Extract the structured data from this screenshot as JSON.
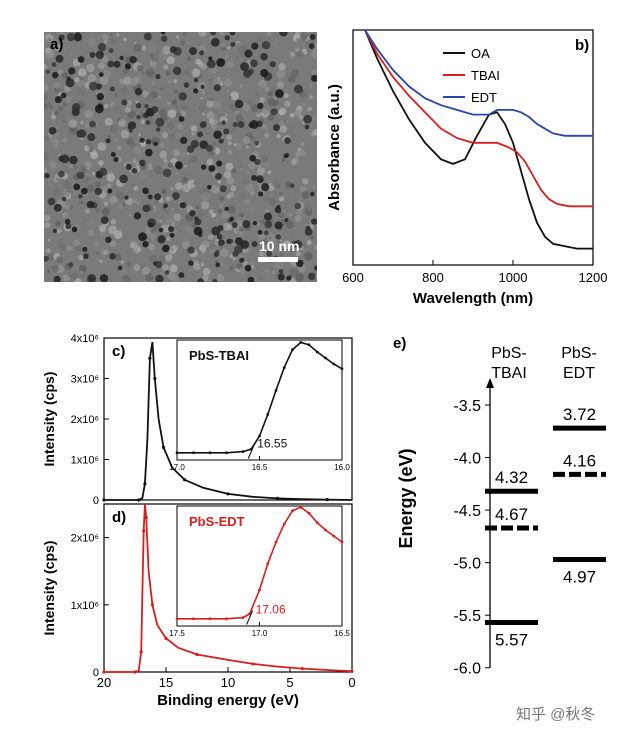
{
  "panel_a": {
    "label": "a)",
    "scale_bar_label": "10 nm"
  },
  "panel_e": {
    "label": "e)",
    "columns": [
      "PbS-\nTBAI",
      "PbS-\nEDT"
    ],
    "ylabel": "Energy (eV)"
  },
  "watermark": "知乎 @秋冬",
  "chart_data": [
    {
      "id": "b",
      "type": "line",
      "panel_label": "b)",
      "title": "",
      "xlabel": "Wavelength (nm)",
      "ylabel": "Absorbance (a.u.)",
      "xlim": [
        600,
        1200
      ],
      "ylim": [
        0,
        1
      ],
      "xticks": [
        600,
        800,
        1000,
        1200
      ],
      "legend_position": "top-center",
      "series": [
        {
          "name": "OA",
          "color": "#111111",
          "x": [
            630,
            660,
            700,
            740,
            780,
            820,
            850,
            880,
            910,
            940,
            960,
            980,
            1000,
            1020,
            1040,
            1060,
            1080,
            1100,
            1130,
            1160,
            1200
          ],
          "y": [
            1.0,
            0.88,
            0.74,
            0.62,
            0.52,
            0.45,
            0.43,
            0.45,
            0.55,
            0.64,
            0.65,
            0.6,
            0.52,
            0.4,
            0.28,
            0.18,
            0.12,
            0.09,
            0.08,
            0.07,
            0.07
          ]
        },
        {
          "name": "TBAI",
          "color": "#d42020",
          "x": [
            630,
            660,
            700,
            740,
            780,
            820,
            860,
            900,
            930,
            960,
            990,
            1010,
            1030,
            1050,
            1070,
            1090,
            1110,
            1140,
            1170,
            1200
          ],
          "y": [
            1.0,
            0.9,
            0.8,
            0.72,
            0.65,
            0.58,
            0.54,
            0.52,
            0.52,
            0.52,
            0.5,
            0.48,
            0.44,
            0.38,
            0.32,
            0.28,
            0.26,
            0.25,
            0.25,
            0.25
          ]
        },
        {
          "name": "EDT",
          "color": "#2a45a8",
          "x": [
            630,
            660,
            700,
            740,
            780,
            820,
            860,
            900,
            940,
            960,
            980,
            1000,
            1020,
            1040,
            1060,
            1080,
            1100,
            1130,
            1160,
            1200
          ],
          "y": [
            1.0,
            0.92,
            0.83,
            0.76,
            0.71,
            0.68,
            0.66,
            0.64,
            0.64,
            0.66,
            0.66,
            0.66,
            0.65,
            0.63,
            0.6,
            0.58,
            0.56,
            0.55,
            0.55,
            0.55
          ]
        }
      ]
    },
    {
      "id": "c",
      "type": "line",
      "panel_label": "c)",
      "xlabel": "",
      "ylabel": "Intensity (cps)",
      "xlim": [
        20,
        0
      ],
      "ylim": [
        0,
        4000000
      ],
      "yticks": [
        "0",
        "1x10⁶",
        "2x10⁶",
        "3x10⁶",
        "4x10⁶"
      ],
      "ytick_values": [
        0,
        1000000,
        2000000,
        3000000,
        4000000
      ],
      "series": [
        {
          "name": "PbS-TBAI",
          "color": "#111111",
          "x": [
            20,
            18,
            17.2,
            16.9,
            16.7,
            16.5,
            16.3,
            16.1,
            15.9,
            15.6,
            15.2,
            14.5,
            13.5,
            12,
            10,
            8,
            6,
            4,
            2,
            0
          ],
          "y": [
            0,
            0,
            0,
            50000,
            400000,
            1500000,
            3500000,
            3900000,
            3000000,
            2000000,
            1300000,
            800000,
            500000,
            300000,
            150000,
            80000,
            40000,
            20000,
            10000,
            0
          ]
        }
      ],
      "inset": {
        "label": "PbS-TBAI",
        "annotation": "16.55",
        "xlim": [
          17.0,
          16.0
        ],
        "xticks": [
          "17.0",
          "16.5",
          "16.0"
        ],
        "xtick_values": [
          17.0,
          16.5,
          16.0
        ],
        "x": [
          17.0,
          16.9,
          16.8,
          16.7,
          16.6,
          16.55,
          16.5,
          16.45,
          16.4,
          16.35,
          16.3,
          16.25,
          16.2,
          16.15,
          16.1,
          16.05,
          16.0
        ],
        "y": [
          0.06,
          0.06,
          0.06,
          0.06,
          0.07,
          0.09,
          0.2,
          0.38,
          0.58,
          0.77,
          0.92,
          0.98,
          0.96,
          0.9,
          0.85,
          0.8,
          0.76
        ]
      }
    },
    {
      "id": "d",
      "type": "line",
      "panel_label": "d)",
      "xlabel": "Binding energy (eV)",
      "ylabel": "Intensity (cps)",
      "xlim": [
        20,
        0
      ],
      "xticks": [
        20,
        15,
        10,
        5,
        0
      ],
      "ylim": [
        0,
        2500000
      ],
      "yticks": [
        "0",
        "1x10⁶",
        "2x10⁶"
      ],
      "ytick_values": [
        0,
        1000000,
        2000000
      ],
      "series": [
        {
          "name": "PbS-EDT",
          "color": "#d42020",
          "x": [
            20,
            18,
            17.5,
            17.2,
            17.0,
            16.9,
            16.8,
            16.7,
            16.6,
            16.4,
            16.1,
            15.7,
            15.0,
            14,
            12.5,
            10,
            8,
            6,
            4,
            2,
            0
          ],
          "y": [
            0,
            0,
            0,
            20000,
            300000,
            1200000,
            2100000,
            2500000,
            2300000,
            1500000,
            1000000,
            700000,
            500000,
            360000,
            260000,
            180000,
            120000,
            80000,
            50000,
            30000,
            10000
          ]
        }
      ],
      "inset": {
        "label": "PbS-EDT",
        "annotation": "17.06",
        "xlim": [
          17.5,
          16.5
        ],
        "xticks": [
          "17.5",
          "17.0",
          "16.5"
        ],
        "xtick_values": [
          17.5,
          17.0,
          16.5
        ],
        "x": [
          17.5,
          17.4,
          17.3,
          17.2,
          17.1,
          17.06,
          17.0,
          16.95,
          16.9,
          16.85,
          16.8,
          16.75,
          16.7,
          16.65,
          16.6,
          16.55,
          16.5
        ],
        "y": [
          0.06,
          0.06,
          0.06,
          0.06,
          0.07,
          0.1,
          0.3,
          0.52,
          0.7,
          0.85,
          0.96,
          0.99,
          0.94,
          0.86,
          0.8,
          0.75,
          0.7
        ]
      }
    },
    {
      "id": "e",
      "type": "other",
      "panel_label": "e)",
      "ylabel": "Energy (eV)",
      "ylim": [
        -6.0,
        -3.3
      ],
      "yticks": [
        "-3.5",
        "-4.0",
        "-4.5",
        "-5.0",
        "-5.5",
        "-6.0"
      ],
      "ytick_values": [
        -3.5,
        -4.0,
        -4.5,
        -5.0,
        -5.5,
        -6.0
      ],
      "levels": [
        {
          "column": 0,
          "energy": -4.32,
          "label": "4.32",
          "style": "solid"
        },
        {
          "column": 0,
          "energy": -4.67,
          "label": "4.67",
          "style": "dashed"
        },
        {
          "column": 0,
          "energy": -5.57,
          "label": "5.57",
          "style": "solid"
        },
        {
          "column": 1,
          "energy": -3.72,
          "label": "3.72",
          "style": "solid"
        },
        {
          "column": 1,
          "energy": -4.16,
          "label": "4.16",
          "style": "dashed"
        },
        {
          "column": 1,
          "energy": -4.97,
          "label": "4.97",
          "style": "solid"
        }
      ]
    }
  ]
}
